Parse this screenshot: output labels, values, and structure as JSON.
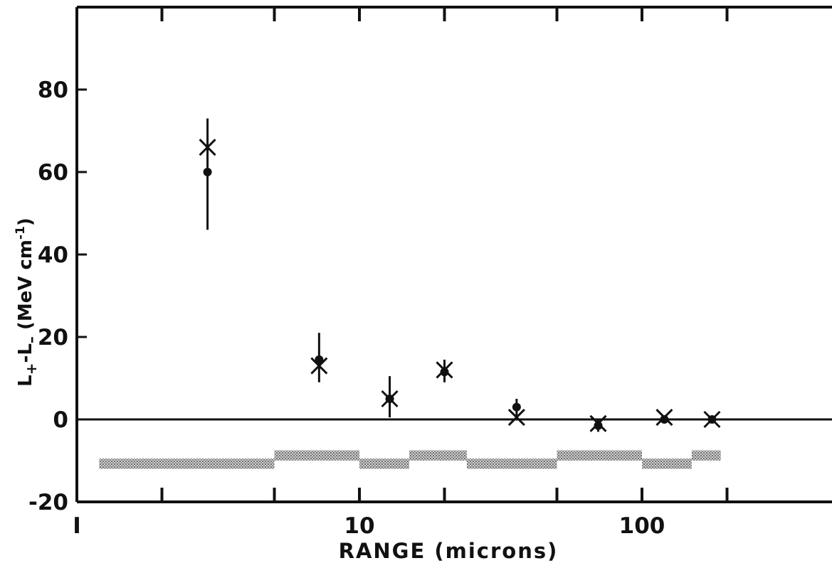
{
  "chart_data": {
    "type": "scatter",
    "title": "",
    "xlabel": "RANGE  (microns)",
    "ylabel": {
      "L1": "L",
      "sub1": "+",
      "dash": "-",
      "L2": "L",
      "sub2": "–",
      "unit": " (MeV cm",
      "exp": "-1",
      "close": ")"
    },
    "x_scale": "log",
    "xlim": [
      1,
      500
    ],
    "ylim": [
      -20,
      100
    ],
    "y_ticks": [
      -20,
      0,
      20,
      40,
      60,
      80
    ],
    "y_tick_labels": [
      "-20",
      "0",
      "20",
      "40",
      "60",
      "80"
    ],
    "x_tick_labels": [
      {
        "x": 1,
        "label": "I"
      },
      {
        "x": 10,
        "label": "10"
      },
      {
        "x": 100,
        "label": "100"
      }
    ],
    "x_major_ticks": [
      1,
      10,
      100
    ],
    "x_minor_ticks": [
      2,
      5,
      20,
      50,
      200
    ],
    "zero_line": 0,
    "series": [
      {
        "marker": "cross",
        "points": [
          {
            "x": 2.9,
            "y": 66
          },
          {
            "x": 7.2,
            "y": 13
          },
          {
            "x": 12.8,
            "y": 5
          },
          {
            "x": 20.0,
            "y": 12
          },
          {
            "x": 36.0,
            "y": 0.5
          },
          {
            "x": 70.0,
            "y": -1
          },
          {
            "x": 120.0,
            "y": 0.5
          },
          {
            "x": 177.0,
            "y": 0
          }
        ]
      },
      {
        "marker": "dot",
        "points": [
          {
            "x": 2.9,
            "y": 60
          },
          {
            "x": 7.2,
            "y": 14.5
          },
          {
            "x": 12.8,
            "y": 5
          },
          {
            "x": 20.0,
            "y": 11.5
          },
          {
            "x": 36.0,
            "y": 3
          },
          {
            "x": 70.0,
            "y": -1.5
          },
          {
            "x": 120.0,
            "y": 0
          },
          {
            "x": 177.0,
            "y": 0
          }
        ]
      }
    ],
    "error_bars": [
      {
        "x": 2.9,
        "y_low": 46,
        "y_high": 73
      },
      {
        "x": 7.2,
        "y_low": 9,
        "y_high": 21
      },
      {
        "x": 12.8,
        "y_low": 0.5,
        "y_high": 10.5
      },
      {
        "x": 20.0,
        "y_low": 9,
        "y_high": 14.5
      },
      {
        "x": 36.0,
        "y_low": 0,
        "y_high": 5
      },
      {
        "x": 70.0,
        "y_low": -3,
        "y_high": 0
      }
    ],
    "shaded_bands": [
      {
        "x0": 1.2,
        "x1": 5.0,
        "y0": -9.5,
        "y1": -12
      },
      {
        "x0": 5.0,
        "x1": 10.0,
        "y0": -7.5,
        "y1": -10
      },
      {
        "x0": 10.0,
        "x1": 15.0,
        "y0": -9.5,
        "y1": -12
      },
      {
        "x0": 15.0,
        "x1": 24.0,
        "y0": -7.5,
        "y1": -10
      },
      {
        "x0": 24.0,
        "x1": 50.0,
        "y0": -9.5,
        "y1": -12
      },
      {
        "x0": 50.0,
        "x1": 100.0,
        "y0": -7.5,
        "y1": -10
      },
      {
        "x0": 100.0,
        "x1": 150.0,
        "y0": -9.5,
        "y1": -12
      },
      {
        "x0": 150.0,
        "x1": 190.0,
        "y0": -7.5,
        "y1": -10
      }
    ],
    "grid": false,
    "legend": "none",
    "colors": {
      "ink": "#111111",
      "band": "#9a9a9a",
      "background": "#ffffff"
    }
  }
}
